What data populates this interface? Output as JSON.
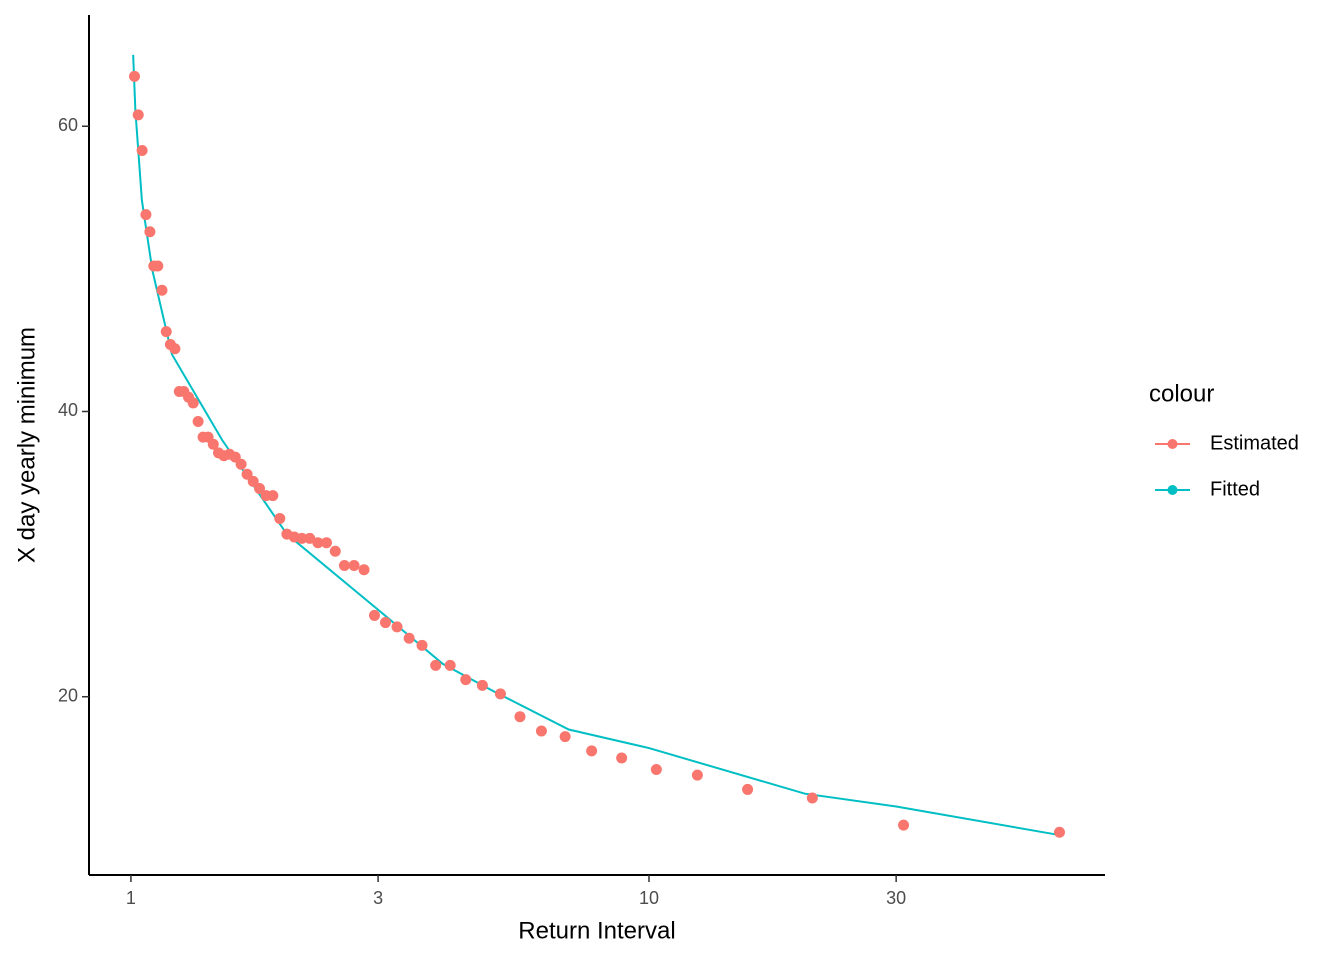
{
  "chart_data": {
    "type": "scatter-line",
    "x_label": "Return Interval",
    "y_label": "X day yearly minimum",
    "legend_title": "colour",
    "legend_position": "right",
    "xscale": "log",
    "grid": false,
    "xlim": [
      0.83,
      75.9
    ],
    "ylim": [
      7.5,
      67.8
    ],
    "xticks": [
      1,
      3,
      10,
      30
    ],
    "yticks": [
      20,
      40,
      60
    ],
    "series": [
      {
        "name": "Estimated",
        "color": "#F8766D",
        "mark": "point",
        "x": [
          1.016,
          1.033,
          1.051,
          1.069,
          1.088,
          1.107,
          1.127,
          1.148,
          1.17,
          1.192,
          1.216,
          1.24,
          1.265,
          1.292,
          1.319,
          1.348,
          1.378,
          1.409,
          1.442,
          1.476,
          1.512,
          1.55,
          1.59,
          1.632,
          1.676,
          1.722,
          1.771,
          1.824,
          1.879,
          1.938,
          2,
          2.067,
          2.138,
          2.214,
          2.296,
          2.385,
          2.48,
          2.583,
          2.696,
          2.818,
          2.952,
          3.1,
          3.263,
          3.444,
          3.647,
          3.875,
          4.133,
          4.429,
          4.769,
          5.167,
          5.636,
          6.2,
          6.889,
          7.75,
          8.857,
          10.333,
          12.4,
          15.5,
          20.667,
          31,
          62
        ],
        "values": [
          63.5,
          60.8,
          58.3,
          53.8,
          52.6,
          50.2,
          50.2,
          48.5,
          45.6,
          44.7,
          44.4,
          41.4,
          41.4,
          41.0,
          40.6,
          39.3,
          38.2,
          38.2,
          37.7,
          37.1,
          36.9,
          37.0,
          36.8,
          36.3,
          35.6,
          35.1,
          34.6,
          34.1,
          34.1,
          32.5,
          31.4,
          31.2,
          31.1,
          31.1,
          30.8,
          30.8,
          30.2,
          29.2,
          29.2,
          28.9,
          25.7,
          25.2,
          24.9,
          24.1,
          23.6,
          22.2,
          22.2,
          21.2,
          20.8,
          20.2,
          18.6,
          17.6,
          17.2,
          16.2,
          15.7,
          14.9,
          14.5,
          13.5,
          12.9,
          11.0,
          10.5
        ]
      },
      {
        "name": "Fitted",
        "color": "#00BFC4",
        "mark": "line",
        "x": [
          1.01,
          1.02,
          1.05,
          1.1,
          1.2,
          1.5,
          2,
          3,
          4,
          5,
          7,
          10,
          20,
          30,
          62
        ],
        "values": [
          65.0,
          61.1,
          54.8,
          49.9,
          44.0,
          38.0,
          31.4,
          26.1,
          22.3,
          20.4,
          17.7,
          16.4,
          13.2,
          12.3,
          10.3
        ]
      }
    ]
  }
}
